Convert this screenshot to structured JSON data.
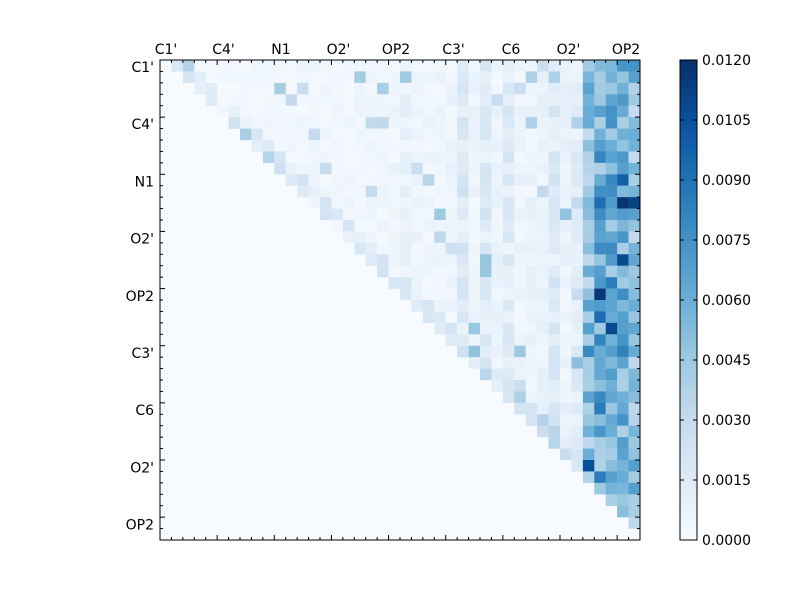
{
  "chart_data": {
    "type": "heatmap",
    "n": 42,
    "value_range": [
      0.0,
      0.012
    ],
    "colormap": "Blues",
    "grid": false,
    "x_tick_labels": [
      "C1'",
      "C4'",
      "N1",
      "O2'",
      "OP2",
      "C3'",
      "C6",
      "O2'",
      "OP2"
    ],
    "y_tick_labels": [
      "C1'",
      "C4'",
      "N1",
      "O2'",
      "OP2",
      "C3'",
      "C6",
      "O2'",
      "OP2"
    ],
    "colorbar_tick_labels": [
      "0.0120",
      "0.0105",
      "0.0090",
      "0.0075",
      "0.0060",
      "0.0045",
      "0.0030",
      "0.0015",
      "0.0000"
    ],
    "colorbar_ticks": [
      0.012,
      0.0105,
      0.009,
      0.0075,
      0.006,
      0.0045,
      0.003,
      0.0015,
      0.0
    ],
    "mask": "upper-triangle-only"
  }
}
